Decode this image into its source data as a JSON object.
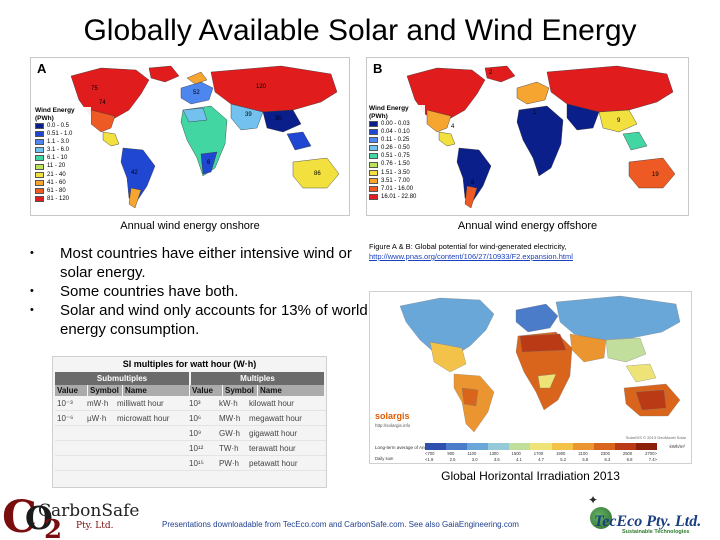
{
  "title": "Globally Available Solar and Wind Energy",
  "map_a": {
    "letter": "A",
    "caption": "Annual wind energy onshore",
    "legend_title": "Wind Energy (PWh)",
    "legend": [
      {
        "label": "0.0 - 0.5",
        "color": "#0b1f8a"
      },
      {
        "label": "0.51 - 1.0",
        "color": "#1f47d1"
      },
      {
        "label": "1.1 - 3.0",
        "color": "#4e86ef"
      },
      {
        "label": "3.1 - 6.0",
        "color": "#72c1ee"
      },
      {
        "label": "6.1 - 10",
        "color": "#42d6a3"
      },
      {
        "label": "11 - 20",
        "color": "#b9e45a"
      },
      {
        "label": "21 - 40",
        "color": "#f1e03e"
      },
      {
        "label": "41 - 60",
        "color": "#f6a531"
      },
      {
        "label": "61 - 80",
        "color": "#ee5a24"
      },
      {
        "label": "81 - 120",
        "color": "#e11c1c"
      }
    ],
    "labels": [
      "75",
      "74",
      "120",
      "39",
      "30",
      "52",
      "86",
      "6",
      "42"
    ]
  },
  "map_b": {
    "letter": "B",
    "caption": "Annual wind energy offshore",
    "legend_title": "Wind Energy (PWh)",
    "legend": [
      {
        "label": "0.00 - 0.03",
        "color": "#0b1f8a"
      },
      {
        "label": "0.04 - 0.10",
        "color": "#1f47d1"
      },
      {
        "label": "0.11 - 0.25",
        "color": "#4e86ef"
      },
      {
        "label": "0.26 - 0.50",
        "color": "#72c1ee"
      },
      {
        "label": "0.51 - 0.75",
        "color": "#42d6a3"
      },
      {
        "label": "0.76 - 1.50",
        "color": "#b9e45a"
      },
      {
        "label": "1.51 - 3.50",
        "color": "#f1e03e"
      },
      {
        "label": "3.51 - 7.00",
        "color": "#f6a531"
      },
      {
        "label": "7.01 - 16.00",
        "color": "#ee5a24"
      },
      {
        "label": "16.01 - 22.80",
        "color": "#e11c1c"
      }
    ],
    "labels": [
      "2",
      "4",
      "1",
      "9",
      "19",
      "8"
    ]
  },
  "bullets": [
    "Most countries have either intensive wind or solar energy.",
    "Some countries have both.",
    "Solar and wind only accounts for 13% of world energy consumption."
  ],
  "figure_note": {
    "text": "Figure A & B: Global potential for wind-generated electricity,",
    "link": "http://www.pnas.org/content/106/27/10933/F2.expansion.html"
  },
  "si_table": {
    "title": "SI multiples for watt hour (W·h)",
    "submultiples_label": "Submultiples",
    "multiples_label": "Multiples",
    "col_value": "Value",
    "col_symbol": "Symbol",
    "col_name": "Name",
    "submultiples": [
      {
        "value": "10⁻³",
        "symbol": "mW·h",
        "name": "milliwatt hour"
      },
      {
        "value": "10⁻⁶",
        "symbol": "µW·h",
        "name": "microwatt hour"
      }
    ],
    "multiples": [
      {
        "value": "10³",
        "symbol": "kW·h",
        "name": "kilowatt hour"
      },
      {
        "value": "10⁶",
        "symbol": "MW·h",
        "name": "megawatt hour"
      },
      {
        "value": "10⁹",
        "symbol": "GW·h",
        "name": "gigawatt hour"
      },
      {
        "value": "10¹²",
        "symbol": "TW·h",
        "name": "terawatt hour"
      },
      {
        "value": "10¹⁵",
        "symbol": "PW·h",
        "name": "petawatt hour"
      }
    ]
  },
  "irradiation": {
    "caption": "Global Horizontal Irradiation 2013",
    "brand": "solargis",
    "brand_sub": "http://solargis.info",
    "credit": "SolarGIS © 2013 GeoModel Solar",
    "scale_label": "Long-term average of   Annual sum",
    "scale_label2": "Daily sum",
    "unit": "kWh/m²",
    "ticks_annual": [
      "<700",
      "900",
      "1100",
      "1300",
      "1500",
      "1700",
      "1900",
      "2100",
      "2300",
      "2500",
      "2700>"
    ],
    "ticks_daily": [
      "<1.9",
      "2.5",
      "3.0",
      "3.6",
      "4.1",
      "4.7",
      "5.2",
      "5.8",
      "6.3",
      "6.8",
      "7.4>"
    ],
    "scale_colors": [
      "#2f4fae",
      "#4b7cc9",
      "#6aa7d9",
      "#94c9d7",
      "#c2de9c",
      "#ede377",
      "#f2c249",
      "#eb9530",
      "#d9651d",
      "#b93a14",
      "#8c1f0c"
    ]
  },
  "footer": "Presentations downloadable from TecEco.com and CarbonSafe.com.  See also GaiaEngineering.com",
  "logo_left": {
    "main": "CarbonSafe",
    "pty": "Pty. Ltd.",
    "c": "C",
    "o": "O",
    "two": "2"
  },
  "logo_right": {
    "main": "TecEco Pty. Ltd.",
    "sub": "Sustainable Technologies"
  }
}
